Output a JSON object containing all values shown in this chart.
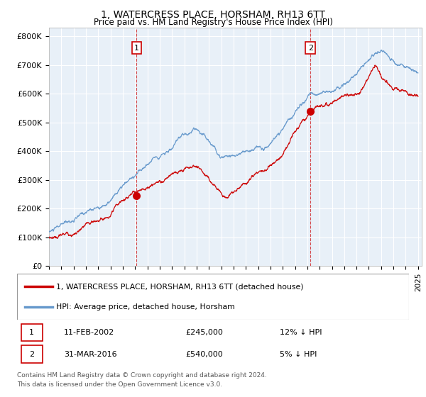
{
  "title1": "1, WATERCRESS PLACE, HORSHAM, RH13 6TT",
  "title2": "Price paid vs. HM Land Registry's House Price Index (HPI)",
  "bg_color": "#e8f0f8",
  "red_line_color": "#cc0000",
  "blue_line_color": "#6699cc",
  "sale1_date": "11-FEB-2002",
  "sale1_price": 245000,
  "sale1_pct": "12% ↓ HPI",
  "sale2_date": "31-MAR-2016",
  "sale2_price": 540000,
  "sale2_pct": "5% ↓ HPI",
  "legend_label1": "1, WATERCRESS PLACE, HORSHAM, RH13 6TT (detached house)",
  "legend_label2": "HPI: Average price, detached house, Horsham",
  "footer": "Contains HM Land Registry data © Crown copyright and database right 2024.\nThis data is licensed under the Open Government Licence v3.0.",
  "ylabel_ticks": [
    "£0",
    "£100K",
    "£200K",
    "£300K",
    "£400K",
    "£500K",
    "£600K",
    "£700K",
    "£800K"
  ],
  "ylabel_values": [
    0,
    100000,
    200000,
    300000,
    400000,
    500000,
    600000,
    700000,
    800000
  ],
  "sale1_year": 2002.12,
  "sale2_year": 2016.25,
  "xlim_left": 1995,
  "xlim_right": 2025.3,
  "ylim_bottom": 0,
  "ylim_top": 830000
}
